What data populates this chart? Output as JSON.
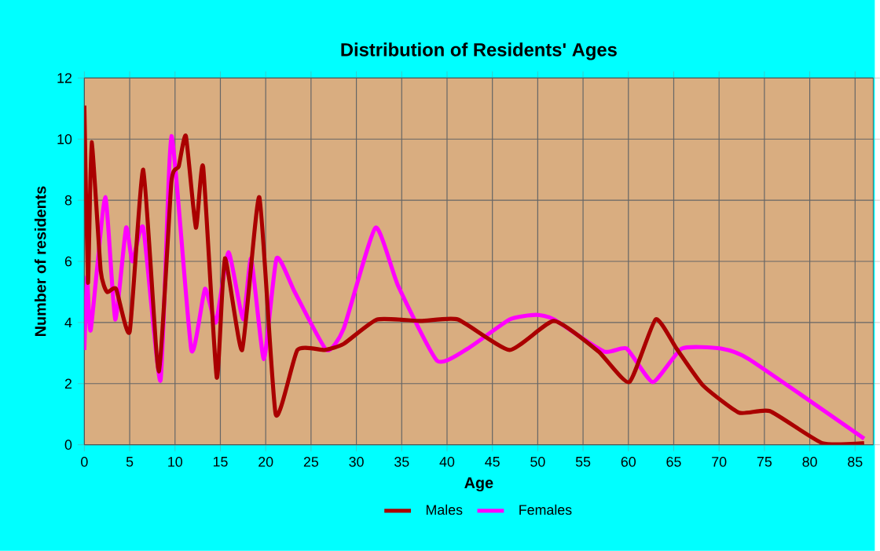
{
  "chart_data": {
    "type": "line",
    "title": "Distribution of Residents' Ages",
    "xlabel": "Age",
    "ylabel": "Number of residents",
    "xlim": [
      0,
      87
    ],
    "ylim": [
      0,
      12
    ],
    "xticks": [
      0,
      5,
      10,
      15,
      20,
      25,
      30,
      35,
      40,
      45,
      50,
      55,
      60,
      65,
      70,
      75,
      80,
      85
    ],
    "yticks": [
      0,
      2,
      4,
      6,
      8,
      10,
      12
    ],
    "grid": true,
    "legend": "bottom",
    "series": [
      {
        "name": "Males",
        "color": "#aa0000",
        "x": [
          0,
          0.4,
          0.8,
          1.8,
          2.5,
          3.5,
          5,
          6.5,
          8.2,
          9.6,
          10.4,
          11.2,
          12.3,
          13.1,
          14.6,
          15.5,
          17.4,
          19.3,
          21.1,
          23.5,
          26.5,
          28.6,
          32.3,
          37.1,
          41.2,
          46.9,
          51.8,
          56.7,
          60.1,
          63,
          65.3,
          68.2,
          72.2,
          75.6,
          81.4,
          86
        ],
        "values": [
          11.1,
          5.3,
          9.9,
          5.7,
          5,
          5.1,
          3.7,
          9,
          2.4,
          8.6,
          9.1,
          10.1,
          7.1,
          9.1,
          2.2,
          6.1,
          3.1,
          8.1,
          1,
          3.1,
          3.1,
          3.3,
          4.1,
          4.05,
          4.1,
          3.1,
          4.05,
          3.05,
          2.05,
          4.1,
          3.15,
          1.95,
          1.05,
          1.1,
          0.05,
          0.05
        ]
      },
      {
        "name": "Females",
        "color": "#ff00ff",
        "x": [
          0,
          0.3,
          0.7,
          2.3,
          3.4,
          4.6,
          5.3,
          6.5,
          8.4,
          9.6,
          11.8,
          13.3,
          14.5,
          15.9,
          17.5,
          18.4,
          19.8,
          21.2,
          23.2,
          26.7,
          28.6,
          32.1,
          34.6,
          38.9,
          42.3,
          46.9,
          49.8,
          51.8,
          57.3,
          59.8,
          62.7,
          65.9,
          70.2,
          73.3,
          86
        ],
        "values": [
          3.1,
          5.5,
          3.75,
          8.1,
          4.1,
          7.1,
          6,
          7.1,
          2.1,
          10.1,
          3.1,
          5.1,
          4,
          6.3,
          4.1,
          6.1,
          2.8,
          6.1,
          5,
          3.1,
          3.8,
          7.1,
          5.2,
          2.75,
          3.15,
          4.1,
          4.25,
          4.1,
          3.05,
          3.15,
          2.05,
          3.15,
          3.15,
          2.8,
          0.2
        ]
      }
    ]
  }
}
